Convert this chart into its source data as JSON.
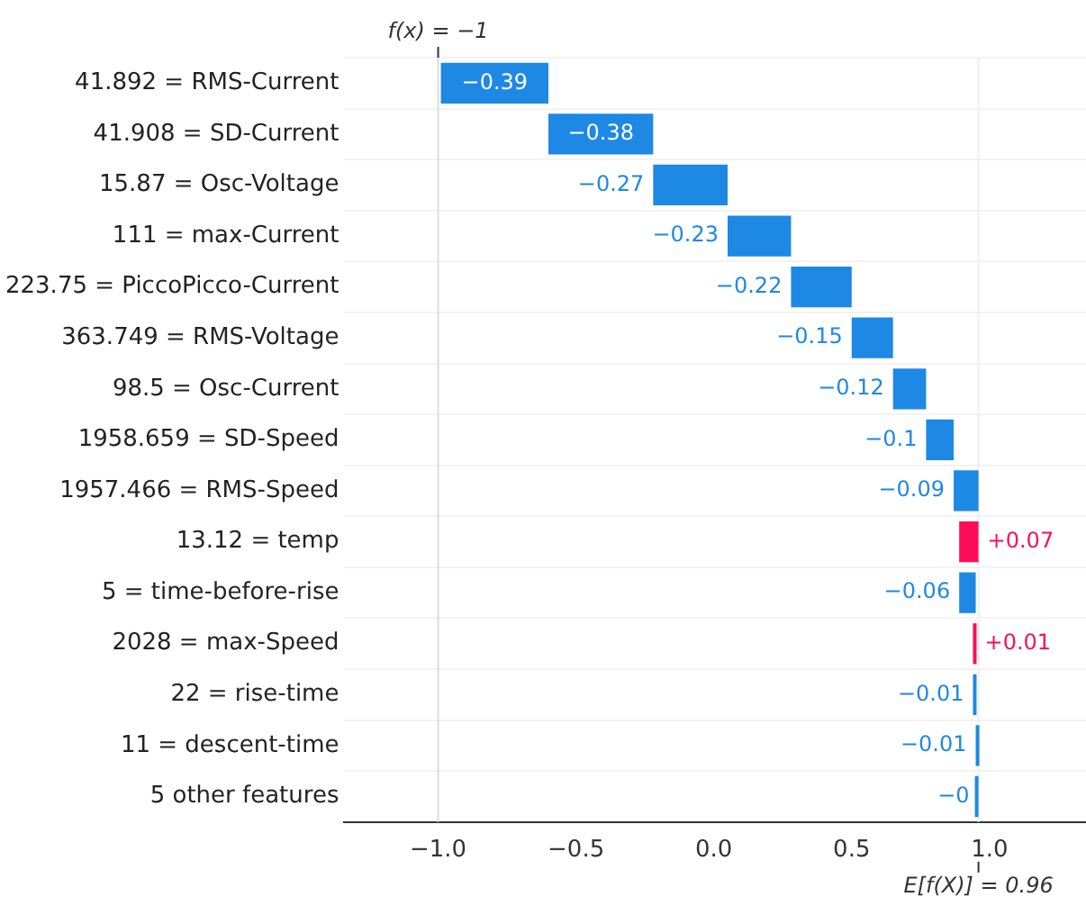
{
  "chart_data": {
    "type": "bar",
    "orientation": "horizontal",
    "categories": [
      "41.892 = RMS-Current",
      "41.908 = SD-Current",
      "15.87 = Osc-Voltage",
      "111 = max-Current",
      "223.75 = PiccoPicco-Current",
      "363.749 = RMS-Voltage",
      "98.5 = Osc-Current",
      "1958.659 = SD-Speed",
      "1957.466 = RMS-Speed",
      "13.12 = temp",
      "5 = time-before-rise",
      "2028 = max-Speed",
      "22 = rise-time",
      "11 = descent-time",
      "5 other features"
    ],
    "values": [
      -0.39,
      -0.38,
      -0.27,
      -0.23,
      -0.22,
      -0.15,
      -0.12,
      -0.1,
      -0.09,
      0.07,
      -0.06,
      0.01,
      -0.01,
      -0.01,
      0
    ],
    "base": [
      -0.6,
      -0.22,
      0.05,
      0.28,
      0.5,
      0.65,
      0.77,
      0.87,
      0.96,
      0.89,
      0.95,
      0.94,
      0.95,
      0.96,
      0.96
    ],
    "value_labels": [
      "−0.39",
      "−0.38",
      "−0.27",
      "−0.23",
      "−0.22",
      "−0.15",
      "−0.12",
      "−0.1",
      "−0.09",
      "+0.07",
      "−0.06",
      "+0.01",
      "−0.01",
      "−0.01",
      "−0"
    ],
    "colors": [
      "#1e88e5",
      "#1e88e5",
      "#1e88e5",
      "#1e88e5",
      "#1e88e5",
      "#1e88e5",
      "#1e88e5",
      "#1e88e5",
      "#1e88e5",
      "#ff0d57",
      "#1e88e5",
      "#ff0d57",
      "#1e88e5",
      "#1e88e5",
      "#1e88e5"
    ],
    "xlim": [
      -1.34,
      1.35
    ],
    "xticks": [
      {
        "value": -1,
        "label": "−1.0"
      },
      {
        "value": -0.5,
        "label": "−0.5"
      },
      {
        "value": 0,
        "label": "0.0"
      },
      {
        "value": 0.5,
        "label": "0.5"
      },
      {
        "value": 1,
        "label": "1.0"
      }
    ],
    "ref_lines": [
      {
        "axis": "x",
        "value": -1,
        "label": "f(x) = −1",
        "color": "#dddddd"
      },
      {
        "axis": "x",
        "value": 0.96,
        "label": "E[f(X)] = 0.96",
        "color": "#eeeeee"
      }
    ],
    "grid": "y",
    "legend": false
  }
}
